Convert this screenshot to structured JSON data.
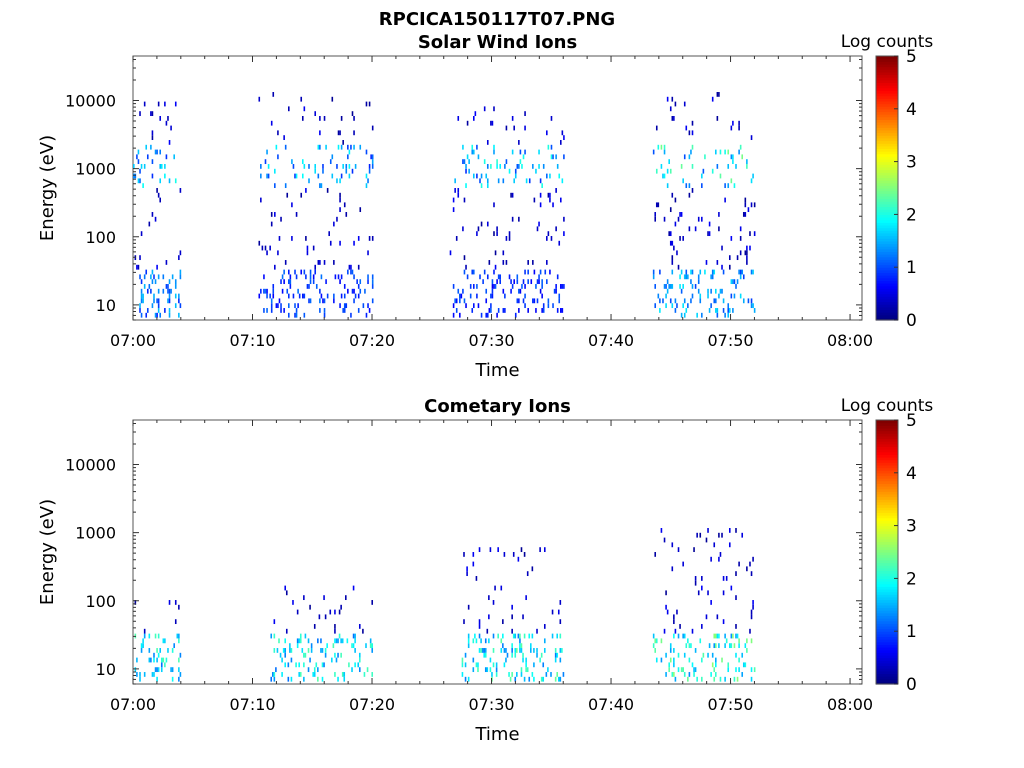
{
  "figure_title": "RPCICA150117T07.PNG",
  "chart_data": [
    {
      "type": "heatmap",
      "title": "Solar Wind Ions",
      "xlabel": "Time",
      "ylabel": "Energy (eV)",
      "y_scale": "log",
      "ylim": [
        6,
        45000
      ],
      "x_ticks": [
        "07:00",
        "07:10",
        "07:20",
        "07:30",
        "07:40",
        "07:50",
        "08:00"
      ],
      "xlim_minutes_after_0700": [
        0,
        61
      ],
      "y_ticks": [
        "10",
        "100",
        "1000",
        "10000"
      ],
      "colorbar": {
        "label": "Log counts",
        "range": [
          0,
          5
        ],
        "ticks": [
          "0",
          "1",
          "2",
          "3",
          "4",
          "5"
        ],
        "colormap": "jet"
      },
      "bursts": [
        {
          "start_min": 0.0,
          "end_min": 3.9,
          "dense_max_eV": 2000,
          "scatter_max_eV": 11000,
          "low_energy_peak_log": 1.6,
          "high_energy_peak_log": 2.0
        },
        {
          "start_min": 10.5,
          "end_min": 20.0,
          "dense_max_eV": 2000,
          "scatter_max_eV": 14000,
          "low_energy_peak_log": 1.2,
          "high_energy_peak_log": 1.9
        },
        {
          "start_min": 26.5,
          "end_min": 36.0,
          "dense_max_eV": 2000,
          "scatter_max_eV": 8000,
          "low_energy_peak_log": 1.1,
          "high_energy_peak_log": 2.1
        },
        {
          "start_min": 43.5,
          "end_min": 52.0,
          "dense_max_eV": 2000,
          "scatter_max_eV": 13000,
          "low_energy_peak_log": 1.8,
          "high_energy_peak_log": 2.5
        }
      ]
    },
    {
      "type": "heatmap",
      "title": "Cometary Ions",
      "xlabel": "Time",
      "ylabel": "Energy (eV)",
      "y_scale": "log",
      "ylim": [
        6,
        45000
      ],
      "x_ticks": [
        "07:00",
        "07:10",
        "07:20",
        "07:30",
        "07:40",
        "07:50",
        "08:00"
      ],
      "xlim_minutes_after_0700": [
        0,
        61
      ],
      "y_ticks": [
        "10",
        "100",
        "1000",
        "10000"
      ],
      "colorbar": {
        "label": "Log counts",
        "range": [
          0,
          5
        ],
        "ticks": [
          "0",
          "1",
          "2",
          "3",
          "4",
          "5"
        ],
        "colormap": "jet"
      },
      "bursts": [
        {
          "start_min": 0.0,
          "end_min": 4.0,
          "low_energy_peak_log": 2.3,
          "scatter_max_eV": 120
        },
        {
          "start_min": 11.5,
          "end_min": 20.0,
          "low_energy_peak_log": 2.3,
          "scatter_max_eV": 150
        },
        {
          "start_min": 27.5,
          "end_min": 36.0,
          "low_energy_peak_log": 2.4,
          "scatter_max_eV": 600
        },
        {
          "start_min": 43.5,
          "end_min": 52.0,
          "low_energy_peak_log": 2.6,
          "scatter_max_eV": 1200
        }
      ]
    }
  ]
}
